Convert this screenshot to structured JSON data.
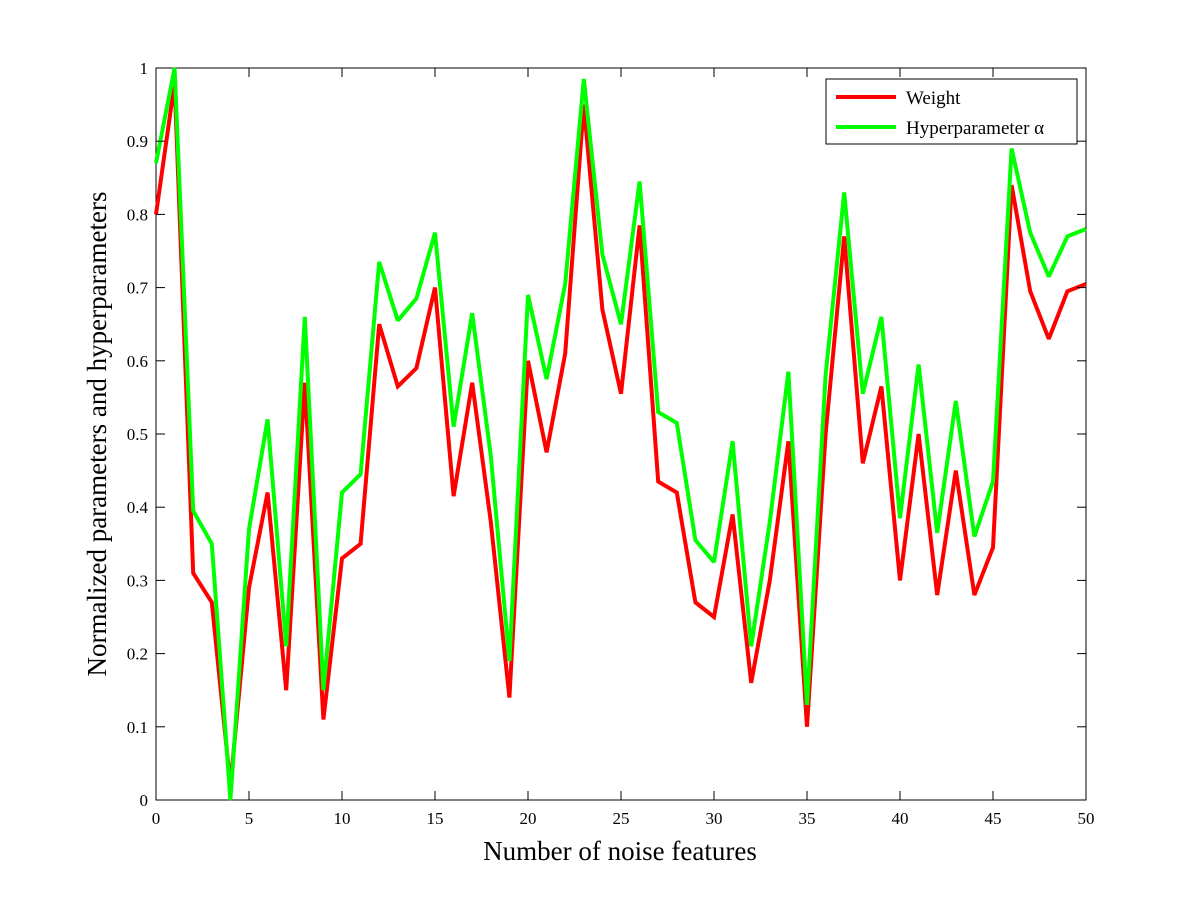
{
  "chart_data": {
    "type": "line",
    "title": "",
    "xlabel": "Number of noise features",
    "ylabel": "Normalized parameters and hyperparameters",
    "xlim": [
      0,
      50
    ],
    "ylim": [
      0,
      1
    ],
    "xticks": [
      0,
      5,
      10,
      15,
      20,
      25,
      30,
      35,
      40,
      45,
      50
    ],
    "yticks": [
      0,
      0.1,
      0.2,
      0.3,
      0.4,
      0.5,
      0.6,
      0.7,
      0.8,
      0.9,
      1
    ],
    "grid": false,
    "legend_position": "top-right",
    "x": [
      0,
      1,
      2,
      3,
      4,
      5,
      6,
      7,
      8,
      9,
      10,
      11,
      12,
      13,
      14,
      15,
      16,
      17,
      18,
      19,
      20,
      21,
      22,
      23,
      24,
      25,
      26,
      27,
      28,
      29,
      30,
      31,
      32,
      33,
      34,
      35,
      36,
      37,
      38,
      39,
      40,
      41,
      42,
      43,
      44,
      45,
      46,
      47,
      48,
      49,
      50
    ],
    "series": [
      {
        "name": "Weight",
        "color": "#ff0000",
        "values": [
          0.8,
          0.98,
          0.31,
          0.27,
          0.02,
          0.29,
          0.42,
          0.15,
          0.57,
          0.11,
          0.33,
          0.35,
          0.65,
          0.565,
          0.59,
          0.7,
          0.415,
          0.57,
          0.38,
          0.14,
          0.6,
          0.475,
          0.61,
          0.95,
          0.67,
          0.555,
          0.785,
          0.435,
          0.42,
          0.27,
          0.25,
          0.39,
          0.16,
          0.3,
          0.49,
          0.1,
          0.5,
          0.77,
          0.46,
          0.565,
          0.3,
          0.5,
          0.28,
          0.45,
          0.28,
          0.345,
          0.84,
          0.695,
          0.63,
          0.695,
          0.705
        ]
      },
      {
        "name": "Hyperparameter α",
        "color": "#00ff00",
        "values": [
          0.87,
          1.0,
          0.395,
          0.35,
          0.0,
          0.37,
          0.52,
          0.21,
          0.66,
          0.15,
          0.42,
          0.445,
          0.735,
          0.655,
          0.685,
          0.775,
          0.51,
          0.665,
          0.47,
          0.19,
          0.69,
          0.575,
          0.705,
          0.985,
          0.745,
          0.65,
          0.845,
          0.53,
          0.515,
          0.355,
          0.325,
          0.49,
          0.21,
          0.38,
          0.585,
          0.13,
          0.58,
          0.83,
          0.555,
          0.66,
          0.385,
          0.595,
          0.365,
          0.545,
          0.36,
          0.435,
          0.89,
          0.775,
          0.715,
          0.77,
          0.78
        ]
      }
    ]
  }
}
